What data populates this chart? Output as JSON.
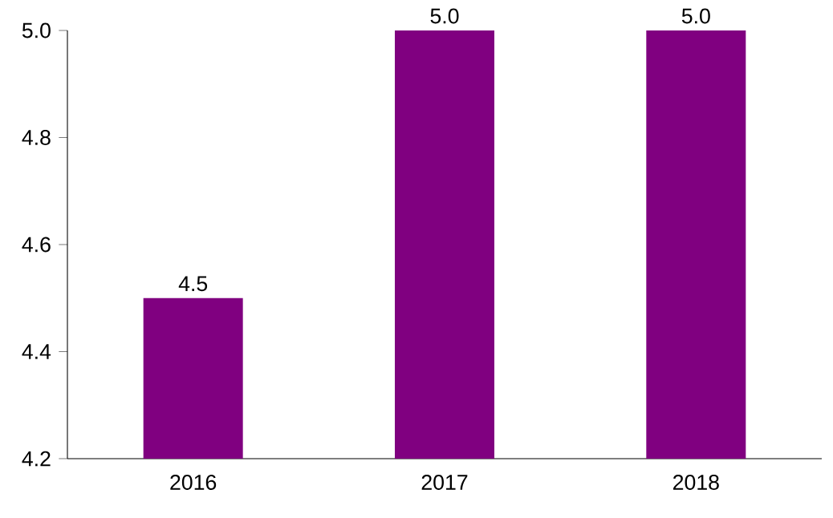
{
  "chart_data": {
    "type": "bar",
    "categories": [
      "2016",
      "2017",
      "2018"
    ],
    "values": [
      4.5,
      5.0,
      5.0
    ],
    "value_labels": [
      "4.5",
      "5.0",
      "5.0"
    ],
    "color": "#800080",
    "ylim": [
      4.2,
      5.0
    ],
    "yticks": [
      4.2,
      4.4,
      4.6,
      4.8,
      {
        "value": 5.0,
        "label": "5.0"
      }
    ]
  }
}
